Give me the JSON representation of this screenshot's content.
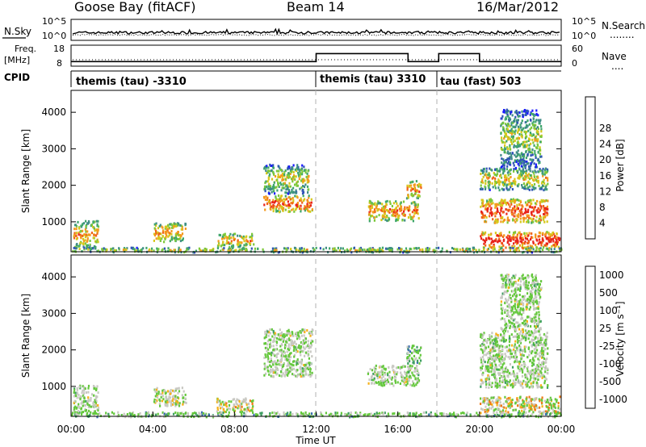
{
  "header": {
    "station": "Goose Bay (fitACF)",
    "beam": "Beam 14",
    "date": "16/Mar/2012"
  },
  "noise_panel": {
    "left_label": "N.Sky",
    "right_label": "N.Search",
    "left_ticks": [
      "10^5",
      "10^0"
    ],
    "right_ticks": [
      "10^5",
      "10^0"
    ],
    "legend_dots": "........"
  },
  "freq_panel": {
    "left_label_1": "Freq.",
    "left_label_2": "[MHz]",
    "right_label": "Nave",
    "left_ticks": [
      "18",
      "8"
    ],
    "right_ticks": [
      "60",
      "0"
    ],
    "legend_dots": "....",
    "freq_steps": [
      {
        "start_h": 0,
        "end_h": 12,
        "value_mhz": 10.2
      },
      {
        "start_h": 12,
        "end_h": 16.5,
        "value_mhz": 14.0
      },
      {
        "start_h": 16.5,
        "end_h": 18.0,
        "value_mhz": 10.2
      },
      {
        "start_h": 18.0,
        "end_h": 20.0,
        "value_mhz": 14.0
      },
      {
        "start_h": 20.0,
        "end_h": 24,
        "value_mhz": 10.2
      }
    ]
  },
  "cpid": {
    "label": "CPID",
    "segments": [
      {
        "start_h": 0,
        "text": "themis (tau) -3310"
      },
      {
        "start_h": 12,
        "text": "themis (tau) 3310"
      },
      {
        "start_h": 18,
        "text": "tau (fast) 503"
      }
    ]
  },
  "chart_data": [
    {
      "type": "heatmap",
      "parameter": "Power",
      "ylabel": "Slant Range [km]",
      "colorbar_label": "Power [dB]",
      "y_ticks": [
        "1000",
        "2000",
        "3000",
        "4000"
      ],
      "colorbar_ticks": [
        "4",
        "8",
        "12",
        "16",
        "20",
        "24",
        "28"
      ],
      "colorbar_colors": [
        "#1b1bff",
        "#2f53b6",
        "#3f8c86",
        "#3fa66b",
        "#7cc83a",
        "#d6c81a",
        "#f39a1e",
        "#f06318",
        "#e8231a"
      ],
      "xlim_hours": [
        0,
        24
      ],
      "ylim_km": [
        180,
        4600
      ],
      "scatter_regions": [
        {
          "t": [
            0.1,
            1.3
          ],
          "r": [
            300,
            1050
          ],
          "level": 0.45
        },
        {
          "t": [
            4.0,
            5.6
          ],
          "r": [
            480,
            1000
          ],
          "level": 0.5
        },
        {
          "t": [
            7.1,
            8.9
          ],
          "r": [
            330,
            700
          ],
          "level": 0.5
        },
        {
          "t": [
            9.4,
            11.8
          ],
          "r": [
            1300,
            1750
          ],
          "level": 0.7
        },
        {
          "t": [
            9.4,
            11.6
          ],
          "r": [
            1800,
            2600
          ],
          "level": 0.3
        },
        {
          "t": [
            14.5,
            17.0
          ],
          "r": [
            1050,
            1600
          ],
          "level": 0.55
        },
        {
          "t": [
            16.4,
            17.1
          ],
          "r": [
            1650,
            2150
          ],
          "level": 0.55
        },
        {
          "t": [
            20.0,
            23.3
          ],
          "r": [
            1000,
            1650
          ],
          "level": 0.75
        },
        {
          "t": [
            20.0,
            23.3
          ],
          "r": [
            1900,
            2500
          ],
          "level": 0.35
        },
        {
          "t": [
            20.0,
            23.9
          ],
          "r": [
            300,
            750
          ],
          "level": 0.9
        },
        {
          "t": [
            0.0,
            24.0
          ],
          "r": [
            190,
            320
          ],
          "level": 0.3
        },
        {
          "t": [
            21.0,
            23.0
          ],
          "r": [
            2500,
            4100
          ],
          "level": 0.2
        }
      ]
    },
    {
      "type": "heatmap",
      "parameter": "Velocity",
      "ylabel": "Slant Range [km]",
      "colorbar_label": "Velocity [m s⁻¹]",
      "y_ticks": [
        "1000",
        "2000",
        "3000",
        "4000"
      ],
      "colorbar_ticks": [
        "1000",
        "500",
        "100",
        "25",
        "-25",
        "-100",
        "-500",
        "-1000"
      ],
      "colorbar_colors": [
        "#1b3fd6",
        "#3b6eb0",
        "#3f9e63",
        "#64c83c",
        "#c8c8c2",
        "#f6b118",
        "#f07a16",
        "#ea2a12"
      ],
      "xlim_hours": [
        0,
        24
      ],
      "ylim_km": [
        180,
        4600
      ],
      "scatter_regions": [
        {
          "t": [
            0.1,
            1.3
          ],
          "r": [
            300,
            1050
          ],
          "level": 0.5
        },
        {
          "t": [
            4.0,
            5.6
          ],
          "r": [
            480,
            1000
          ],
          "level": 0.6
        },
        {
          "t": [
            7.1,
            8.9
          ],
          "r": [
            330,
            700
          ],
          "level": 0.7
        },
        {
          "t": [
            9.4,
            11.8
          ],
          "r": [
            1300,
            2600
          ],
          "level": 0.5
        },
        {
          "t": [
            14.5,
            17.0
          ],
          "r": [
            1050,
            1600
          ],
          "level": 0.5
        },
        {
          "t": [
            16.4,
            17.1
          ],
          "r": [
            1650,
            2150
          ],
          "level": 0.3
        },
        {
          "t": [
            20.0,
            23.3
          ],
          "r": [
            1000,
            2500
          ],
          "level": 0.5
        },
        {
          "t": [
            20.0,
            23.9
          ],
          "r": [
            300,
            750
          ],
          "level": 0.7
        },
        {
          "t": [
            0.0,
            24.0
          ],
          "r": [
            190,
            320
          ],
          "level": 0.35
        },
        {
          "t": [
            21.0,
            23.0
          ],
          "r": [
            2500,
            4100
          ],
          "level": 0.5
        }
      ]
    }
  ],
  "x_axis": {
    "label": "Time UT",
    "ticks": [
      "00:00",
      "04:00",
      "08:00",
      "12:00",
      "16:00",
      "20:00",
      "00:00"
    ]
  }
}
